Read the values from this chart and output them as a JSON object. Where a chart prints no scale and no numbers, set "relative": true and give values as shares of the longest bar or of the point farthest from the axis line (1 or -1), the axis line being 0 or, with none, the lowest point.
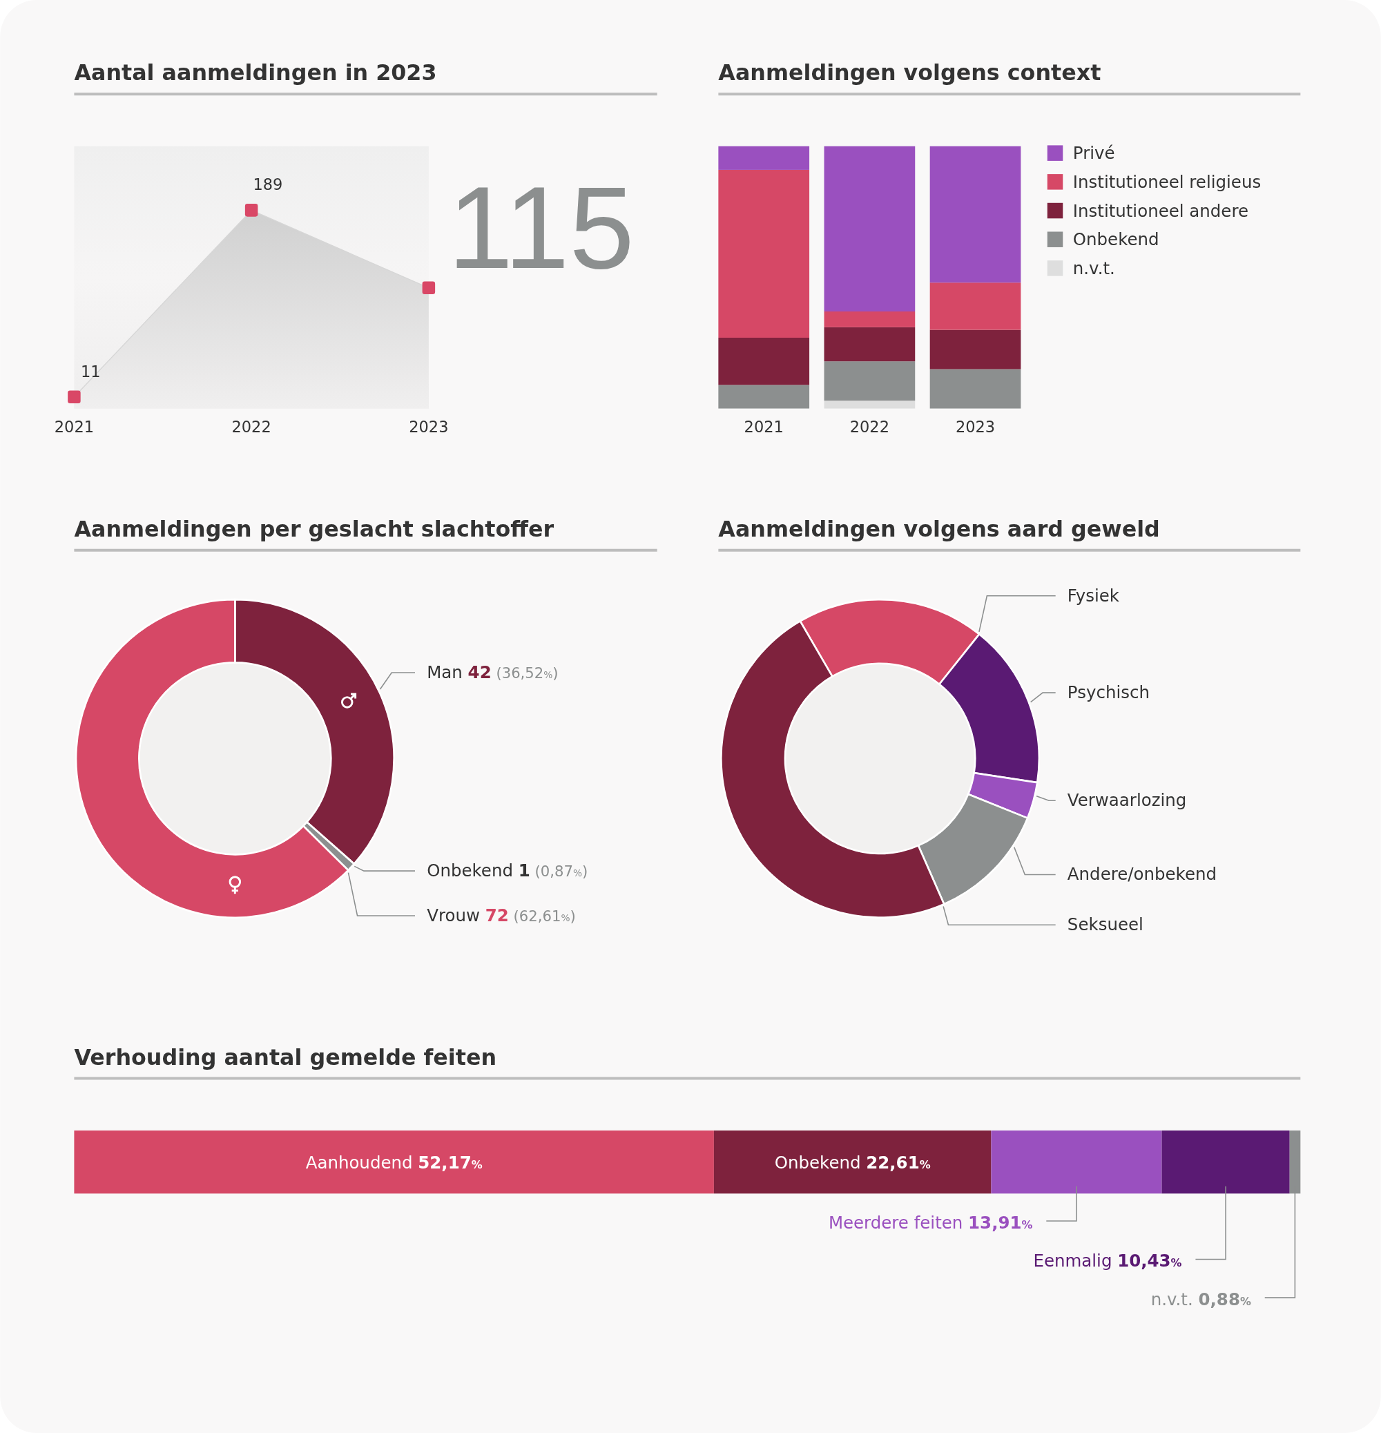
{
  "chart_data": [
    {
      "type": "area",
      "title": "Aantal aanmeldingen in 2023",
      "categories": [
        "2021",
        "2022",
        "2023"
      ],
      "values": [
        11,
        189,
        115
      ],
      "color": "#d94766",
      "marker": "square",
      "data_labels": true
    },
    {
      "type": "bar",
      "title": "Aanmeldingen volgens context",
      "categories": [
        "2021",
        "2022",
        "2023"
      ],
      "stacked": true,
      "relative": true,
      "legend": "right",
      "series": [
        {
          "name": "n.v.t.",
          "color": "#dedede",
          "values": [
            0,
            0.03,
            0
          ]
        },
        {
          "name": "Onbekend",
          "color": "#8c8f8f",
          "values": [
            0.09,
            0.15,
            0.15
          ]
        },
        {
          "name": "Institutioneel andere",
          "color": "#7e223d",
          "values": [
            0.18,
            0.13,
            0.15
          ]
        },
        {
          "name": "Institutioneel religieus",
          "color": "#d64866",
          "values": [
            0.64,
            0.06,
            0.18
          ]
        },
        {
          "name": "Privé",
          "color": "#9a50bf",
          "values": [
            0.09,
            0.63,
            0.52
          ]
        }
      ]
    },
    {
      "type": "donut",
      "title": "Aanmeldingen per geslacht slachtoffer",
      "categories": [
        "Man",
        "Onbekend",
        "Vrouw"
      ],
      "values": [
        42,
        1,
        72
      ],
      "colors": [
        "#7e223d",
        "#8c8f8f",
        "#d64866"
      ],
      "value_labels": [
        "42 (36,52%)",
        "1 (0,87%)",
        "72 (62,61%)"
      ]
    },
    {
      "type": "donut",
      "title": "Aanmeldingen volgens aard geweld",
      "categories": [
        "Fysiek",
        "Psychisch",
        "Verwaarlozing",
        "Andere/onbekend",
        "Seksueel"
      ],
      "values": [
        19.1,
        16.7,
        3.7,
        12.3,
        48.2
      ],
      "colors": [
        "#d64866",
        "#5a1a73",
        "#9a50bf",
        "#8c8f8f",
        "#7e223d"
      ]
    },
    {
      "type": "bar",
      "orientation": "horizontal",
      "stacked": true,
      "title": "Verhouding aantal gemelde feiten",
      "categories": [
        null
      ],
      "series": [
        {
          "name": "Aanhoudend",
          "color": "#d64866",
          "values": [
            52.17
          ],
          "value_labels": [
            "52,17%"
          ]
        },
        {
          "name": "Onbekend",
          "color": "#7e223d",
          "values": [
            22.61
          ],
          "value_labels": [
            "22,61%"
          ]
        },
        {
          "name": "Meerdere feiten",
          "color": "#9a50bf",
          "values": [
            13.91
          ],
          "value_labels": [
            "13,91%"
          ]
        },
        {
          "name": "Eenmalig",
          "color": "#5a1a73",
          "values": [
            10.43
          ],
          "value_labels": [
            "10,43%"
          ]
        },
        {
          "name": "n.v.t.",
          "color": "#8c8f8f",
          "values": [
            0.88
          ],
          "value_labels": [
            "0,88%"
          ]
        }
      ]
    }
  ]
}
